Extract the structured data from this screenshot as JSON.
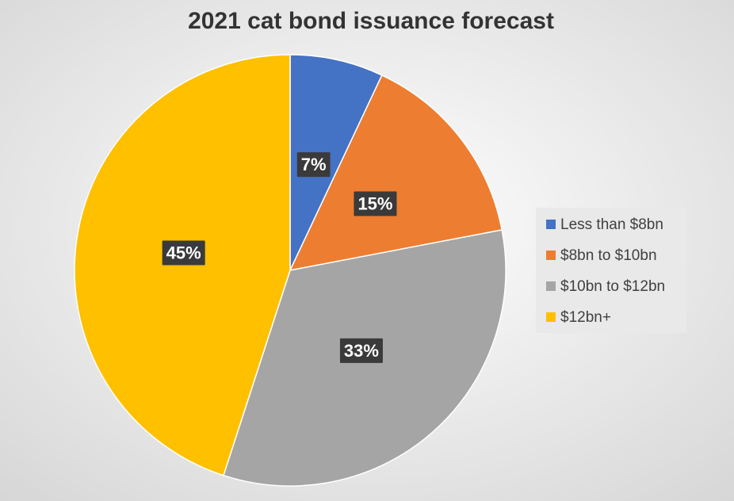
{
  "chart_data": {
    "type": "pie",
    "title": "2021 cat bond issuance forecast",
    "categories": [
      "Less than $8bn",
      "$8bn to $10bn",
      "$10bn to $12bn",
      "$12bn+"
    ],
    "values": [
      7,
      15,
      33,
      45
    ],
    "value_labels": [
      "7%",
      "15%",
      "33%",
      "45%"
    ],
    "colors": [
      "#4472c4",
      "#ed7d31",
      "#a5a5a5",
      "#ffc000"
    ],
    "legend": "right"
  }
}
